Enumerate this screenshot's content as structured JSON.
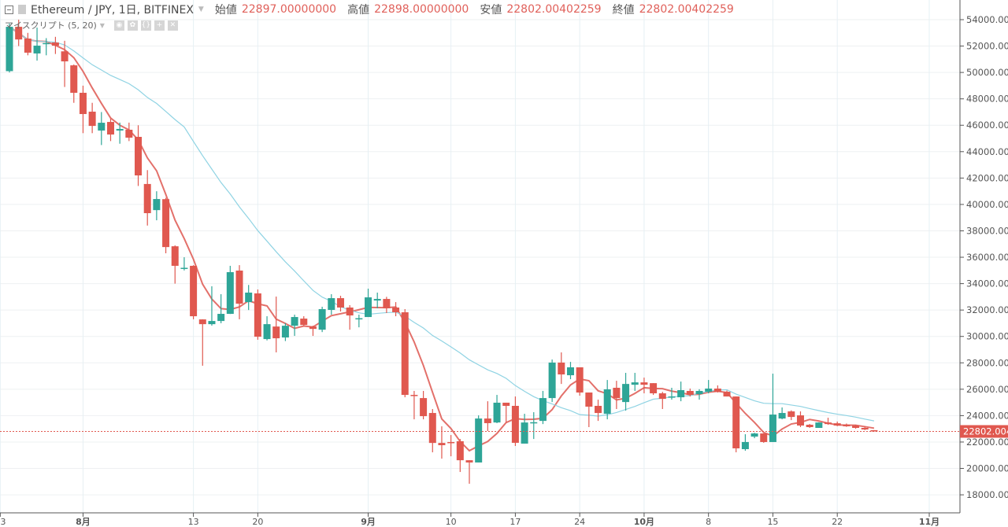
{
  "header": {
    "symbol": "Ethereum / JPY, 1日, BITFINEX",
    "open_label": "始値",
    "open": "22897.00000000",
    "high_label": "高値",
    "high": "22898.00000000",
    "low_label": "安値",
    "low": "22802.00402259",
    "close_label": "終値",
    "close": "22802.00402259"
  },
  "indicator": {
    "label": "マイスクリプト (5, 20)",
    "buttons": [
      "eye-icon",
      "gear-icon",
      "source-icon",
      "plus-icon",
      "close-icon"
    ]
  },
  "colors": {
    "up": "#2ea597",
    "down": "#e0584f",
    "ma_fast": "#e0605a",
    "ma_slow": "#8fd3e3",
    "last_price": "#e0584f"
  },
  "chart_data": {
    "type": "candlestick",
    "title": "",
    "ylim": [
      17000,
      55000
    ],
    "grid": true,
    "y_ticks": [
      "54000.000",
      "52000.000",
      "50000.000",
      "48000.000",
      "46000.000",
      "44000.000",
      "42000.000",
      "40000.000",
      "38000.000",
      "36000.000",
      "34000.000",
      "32000.000",
      "30000.000",
      "28000.000",
      "26000.000",
      "24000.000",
      "22000.000",
      "20000.000",
      "18000.000"
    ],
    "x_ticks": [
      {
        "label": "3",
        "date": "07-23"
      },
      {
        "label": "8月",
        "date": "08-01"
      },
      {
        "label": "13",
        "date": "08-13"
      },
      {
        "label": "20",
        "date": "08-20"
      },
      {
        "label": "9月",
        "date": "09-01"
      },
      {
        "label": "10",
        "date": "09-10"
      },
      {
        "label": "17",
        "date": "09-17"
      },
      {
        "label": "24",
        "date": "09-24"
      },
      {
        "label": "10月",
        "date": "10-01"
      },
      {
        "label": "8",
        "date": "10-08"
      },
      {
        "label": "15",
        "date": "10-15"
      },
      {
        "label": "22",
        "date": "10-22"
      },
      {
        "label": "11月",
        "date": "11-01"
      }
    ],
    "moving_averages": [
      5,
      20
    ],
    "last_price": "22802.00402259",
    "candles_columns": [
      "date",
      "open",
      "high",
      "low",
      "close"
    ],
    "candles": [
      [
        "07-24",
        50100,
        53700,
        50000,
        53460
      ],
      [
        "07-25",
        53460,
        54000,
        52000,
        52500
      ],
      [
        "07-26",
        52570,
        53000,
        51300,
        51500
      ],
      [
        "07-27",
        51440,
        53400,
        50900,
        52030
      ],
      [
        "07-28",
        52200,
        52600,
        51300,
        52230
      ],
      [
        "07-29",
        52270,
        52700,
        51400,
        52030
      ],
      [
        "07-30",
        51600,
        52400,
        48900,
        50840
      ],
      [
        "07-31",
        50540,
        50600,
        47700,
        48460
      ],
      [
        "08-01",
        48460,
        49000,
        45400,
        46850
      ],
      [
        "08-02",
        47030,
        47700,
        45400,
        45950
      ],
      [
        "08-03",
        45600,
        47000,
        44500,
        46190
      ],
      [
        "08-04",
        46250,
        46500,
        44800,
        45300
      ],
      [
        "08-05",
        45600,
        46200,
        44600,
        45720
      ],
      [
        "08-06",
        45660,
        46200,
        44800,
        45060
      ],
      [
        "08-07",
        45120,
        46000,
        41400,
        42200
      ],
      [
        "08-08",
        41550,
        42600,
        38400,
        39340
      ],
      [
        "08-09",
        39570,
        41000,
        38800,
        40410
      ],
      [
        "08-10",
        40400,
        40500,
        36300,
        36770
      ],
      [
        "08-11",
        36830,
        36900,
        34000,
        35350
      ],
      [
        "08-12",
        35170,
        36000,
        35000,
        35200
      ],
      [
        "08-13",
        35350,
        35400,
        31300,
        31530
      ],
      [
        "08-14",
        31290,
        31300,
        27780,
        30930
      ],
      [
        "08-15",
        30930,
        33800,
        30820,
        31170
      ],
      [
        "08-16",
        31170,
        33200,
        31000,
        31710
      ],
      [
        "08-17",
        31710,
        35350,
        31700,
        34870
      ],
      [
        "08-18",
        34990,
        35400,
        31300,
        32480
      ],
      [
        "08-19",
        32600,
        33900,
        32000,
        33320
      ],
      [
        "08-20",
        33260,
        33560,
        29750,
        29980
      ],
      [
        "08-21",
        29800,
        31530,
        29700,
        30930
      ],
      [
        "08-22",
        30750,
        33020,
        28790,
        29860
      ],
      [
        "08-23",
        29920,
        31000,
        29650,
        30810
      ],
      [
        "08-24",
        30810,
        31650,
        30040,
        31470
      ],
      [
        "08-25",
        31350,
        31530,
        30800,
        30870
      ],
      [
        "08-26",
        30750,
        30810,
        30040,
        30570
      ],
      [
        "08-27",
        30510,
        32250,
        30330,
        32070
      ],
      [
        "08-28",
        32010,
        33200,
        31650,
        32900
      ],
      [
        "08-29",
        32900,
        33080,
        31890,
        32190
      ],
      [
        "08-30",
        32190,
        32370,
        30510,
        31590
      ],
      [
        "08-31",
        31350,
        31650,
        30690,
        31380
      ],
      [
        "09-01",
        31470,
        33620,
        31470,
        32960
      ],
      [
        "09-02",
        32720,
        33320,
        32130,
        32840
      ],
      [
        "09-03",
        32840,
        33000,
        31770,
        32130
      ],
      [
        "09-04",
        32190,
        32600,
        31530,
        31830
      ],
      [
        "09-05",
        31830,
        32070,
        25390,
        25570
      ],
      [
        "09-06",
        25570,
        25870,
        23720,
        25540
      ],
      [
        "09-07",
        25330,
        25870,
        23720,
        23960
      ],
      [
        "09-08",
        24200,
        24500,
        21220,
        21930
      ],
      [
        "09-09",
        21930,
        23190,
        20740,
        21760
      ],
      [
        "09-10",
        22000,
        22530,
        20920,
        21930
      ],
      [
        "09-11",
        22060,
        22230,
        19730,
        20620
      ],
      [
        "09-12",
        20620,
        20620,
        18840,
        20450
      ],
      [
        "09-13",
        20450,
        24020,
        20450,
        23780
      ],
      [
        "09-14",
        23780,
        25090,
        22830,
        23430
      ],
      [
        "09-15",
        23480,
        25570,
        23430,
        24980
      ],
      [
        "09-16",
        24980,
        24980,
        23480,
        24740
      ],
      [
        "09-17",
        24740,
        25450,
        21700,
        21940
      ],
      [
        "09-18",
        21880,
        24140,
        21880,
        23480
      ],
      [
        "09-19",
        23480,
        24260,
        22230,
        23500
      ],
      [
        "09-20",
        23600,
        25870,
        23360,
        25330
      ],
      [
        "09-21",
        25330,
        28250,
        25030,
        28020
      ],
      [
        "09-22",
        28020,
        28790,
        26400,
        27120
      ],
      [
        "09-23",
        27060,
        28070,
        26760,
        27660
      ],
      [
        "09-24",
        27660,
        27660,
        25510,
        25750
      ],
      [
        "09-25",
        25750,
        25750,
        23130,
        24680
      ],
      [
        "09-26",
        24740,
        25210,
        23600,
        24200
      ],
      [
        "09-27",
        24140,
        26700,
        23720,
        25990
      ],
      [
        "09-28",
        26110,
        26640,
        24500,
        25330
      ],
      [
        "09-29",
        25030,
        27240,
        24380,
        26400
      ],
      [
        "09-30",
        26340,
        27240,
        25870,
        26520
      ],
      [
        "10-01",
        26520,
        26880,
        25690,
        26340
      ],
      [
        "10-02",
        26460,
        26460,
        25570,
        25690
      ],
      [
        "10-03",
        25690,
        25800,
        24500,
        25270
      ],
      [
        "10-04",
        25390,
        26110,
        25210,
        25450
      ],
      [
        "10-05",
        25390,
        26580,
        25090,
        25930
      ],
      [
        "10-06",
        25870,
        26050,
        25450,
        25570
      ],
      [
        "10-07",
        25630,
        26000,
        25210,
        25870
      ],
      [
        "10-08",
        25810,
        26700,
        25690,
        26050
      ],
      [
        "10-09",
        26050,
        26290,
        25750,
        25810
      ],
      [
        "10-10",
        25810,
        25900,
        25450,
        25450
      ],
      [
        "10-11",
        25450,
        25450,
        21220,
        21520
      ],
      [
        "10-12",
        21460,
        22590,
        21340,
        22000
      ],
      [
        "10-13",
        22410,
        22700,
        22290,
        22650
      ],
      [
        "10-14",
        22650,
        22650,
        21940,
        22000
      ],
      [
        "10-15",
        22000,
        27180,
        22000,
        24080
      ],
      [
        "10-16",
        23780,
        24620,
        23720,
        24200
      ],
      [
        "10-17",
        24320,
        24400,
        23660,
        23900
      ],
      [
        "10-18",
        24020,
        24320,
        23130,
        23250
      ],
      [
        "10-19",
        23310,
        23370,
        23070,
        23130
      ],
      [
        "10-20",
        23070,
        23500,
        23070,
        23480
      ],
      [
        "10-21",
        23480,
        23840,
        23300,
        23360
      ],
      [
        "10-22",
        23420,
        23550,
        23200,
        23250
      ],
      [
        "10-23",
        23310,
        23400,
        23150,
        23190
      ],
      [
        "10-24",
        23250,
        23300,
        23010,
        23070
      ],
      [
        "10-25",
        23070,
        23190,
        22900,
        22950
      ],
      [
        "10-26",
        22897,
        22898,
        22802,
        22802.00402259
      ]
    ]
  }
}
